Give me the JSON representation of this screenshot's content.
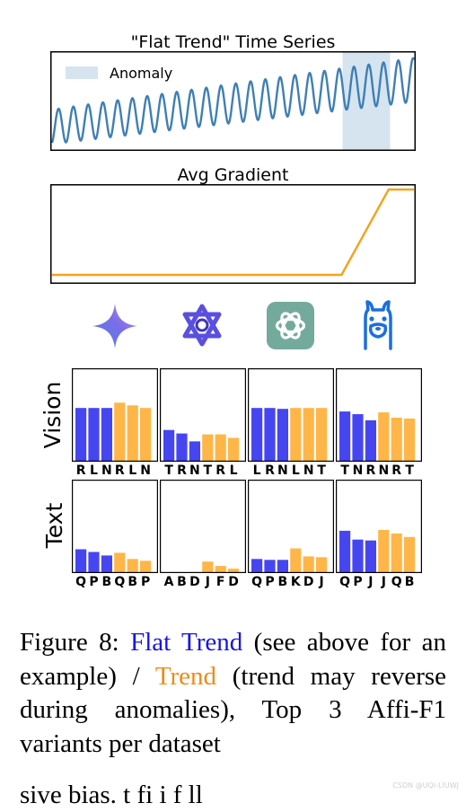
{
  "chart_data": [
    {
      "type": "line",
      "title": "\"Flat Trend\" Time Series",
      "legend": {
        "label": "Anomaly",
        "placement": "top-left"
      },
      "series_color": "#3f7fb5",
      "anomaly_color": "#d6e4f0",
      "cycles": 24.5,
      "amplitude_start": 0.55,
      "amplitude_end": 0.7,
      "baseline_start": 0.0,
      "baseline_end": 1.5,
      "phase": -1.2,
      "anomaly_range": [
        0.8,
        0.93
      ],
      "grid": false
    },
    {
      "type": "line",
      "title": "Avg Gradient",
      "series_color": "#f5a21a",
      "x": [
        0,
        0.8,
        0.93,
        1.0
      ],
      "y": [
        0.05,
        0.05,
        1.0,
        1.0
      ],
      "grid": false
    },
    {
      "type": "bar",
      "row": "Vision",
      "panel": 1,
      "categories": [
        "R",
        "L",
        "N",
        "R",
        "L",
        "N"
      ],
      "values": [
        0.6,
        0.6,
        0.6,
        0.66,
        0.63,
        0.6
      ],
      "colors": [
        "#4646f0",
        "#4646f0",
        "#4646f0",
        "#ffb648",
        "#ffb648",
        "#ffb648"
      ]
    },
    {
      "type": "bar",
      "row": "Vision",
      "panel": 2,
      "categories": [
        "T",
        "R",
        "N",
        "T",
        "R",
        "L"
      ],
      "values": [
        0.35,
        0.31,
        0.22,
        0.3,
        0.3,
        0.26
      ],
      "colors": [
        "#4646f0",
        "#4646f0",
        "#4646f0",
        "#ffb648",
        "#ffb648",
        "#ffb648"
      ]
    },
    {
      "type": "bar",
      "row": "Vision",
      "panel": 3,
      "categories": [
        "L",
        "R",
        "N",
        "L",
        "N",
        "T"
      ],
      "values": [
        0.6,
        0.6,
        0.59,
        0.6,
        0.6,
        0.6
      ],
      "colors": [
        "#4646f0",
        "#4646f0",
        "#4646f0",
        "#ffb648",
        "#ffb648",
        "#ffb648"
      ]
    },
    {
      "type": "bar",
      "row": "Vision",
      "panel": 4,
      "categories": [
        "T",
        "N",
        "R",
        "N",
        "R",
        "T"
      ],
      "values": [
        0.56,
        0.53,
        0.46,
        0.55,
        0.49,
        0.48
      ],
      "colors": [
        "#4646f0",
        "#4646f0",
        "#4646f0",
        "#ffb648",
        "#ffb648",
        "#ffb648"
      ]
    },
    {
      "type": "bar",
      "row": "Text",
      "panel": 1,
      "categories": [
        "Q",
        "P",
        "B",
        "Q",
        "B",
        "P"
      ],
      "values": [
        0.26,
        0.23,
        0.19,
        0.22,
        0.15,
        0.13
      ],
      "colors": [
        "#4646f0",
        "#4646f0",
        "#4646f0",
        "#ffb648",
        "#ffb648",
        "#ffb648"
      ]
    },
    {
      "type": "bar",
      "row": "Text",
      "panel": 2,
      "categories": [
        "A",
        "B",
        "D",
        "J",
        "F",
        "D"
      ],
      "values": [
        0,
        0,
        0,
        0.12,
        0.07,
        0.04
      ],
      "colors": [
        "#4646f0",
        "#4646f0",
        "#4646f0",
        "#ffb648",
        "#ffb648",
        "#ffb648"
      ]
    },
    {
      "type": "bar",
      "row": "Text",
      "panel": 3,
      "categories": [
        "Q",
        "P",
        "B",
        "K",
        "D",
        "J"
      ],
      "values": [
        0.15,
        0.14,
        0.14,
        0.27,
        0.18,
        0.17
      ],
      "colors": [
        "#4646f0",
        "#4646f0",
        "#4646f0",
        "#ffb648",
        "#ffb648",
        "#ffb648"
      ]
    },
    {
      "type": "bar",
      "row": "Text",
      "panel": 4,
      "categories": [
        "Q",
        "P",
        "J",
        "J",
        "Q",
        "B"
      ],
      "values": [
        0.47,
        0.37,
        0.36,
        0.48,
        0.44,
        0.4
      ],
      "colors": [
        "#4646f0",
        "#4646f0",
        "#4646f0",
        "#ffb648",
        "#ffb648",
        "#ffb648"
      ]
    }
  ],
  "row_labels": [
    "Vision",
    "Text"
  ],
  "model_icons": [
    "gemini-icon",
    "qwen-icon",
    "openai-icon",
    "llama-icon"
  ],
  "caption": {
    "prefix": "Figure 8: ",
    "flat_trend": "Flat Trend",
    "middle": " (see above for an example) / ",
    "trend": "Trend",
    "suffix": " (trend may reverse during anomalies), Top 3 Affi-F1 variants per dataset"
  },
  "cut_text": "sive bias. t fi  i                    f ll",
  "watermark": "CSDN @UQI-LIUWJ"
}
